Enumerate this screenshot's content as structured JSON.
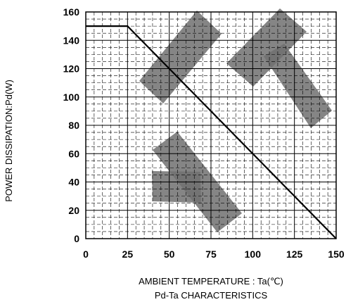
{
  "chart_data": {
    "type": "line",
    "title": "Pd-Ta  CHARACTERISTICS",
    "xlabel": "AMBIENT TEMPERATURE : Ta(℃)",
    "ylabel": "POWER DISSIPATION:Pd(W)",
    "xlim": [
      0,
      150
    ],
    "ylim": [
      0,
      160
    ],
    "xticks": [
      0,
      25,
      50,
      75,
      100,
      125,
      150
    ],
    "yticks": [
      0,
      20,
      40,
      60,
      80,
      100,
      120,
      140,
      160
    ],
    "x_tick_labels": [
      "0",
      "25",
      "50",
      "75",
      "100",
      "125",
      "150"
    ],
    "y_tick_labels": [
      "0",
      "20",
      "40",
      "60",
      "80",
      "100",
      "120",
      "140",
      "160"
    ],
    "grid": true,
    "series": [
      {
        "x": [
          0,
          25,
          150
        ],
        "y": [
          150,
          150,
          0
        ],
        "color": "#000000"
      }
    ],
    "watermark_color": "#707070"
  }
}
